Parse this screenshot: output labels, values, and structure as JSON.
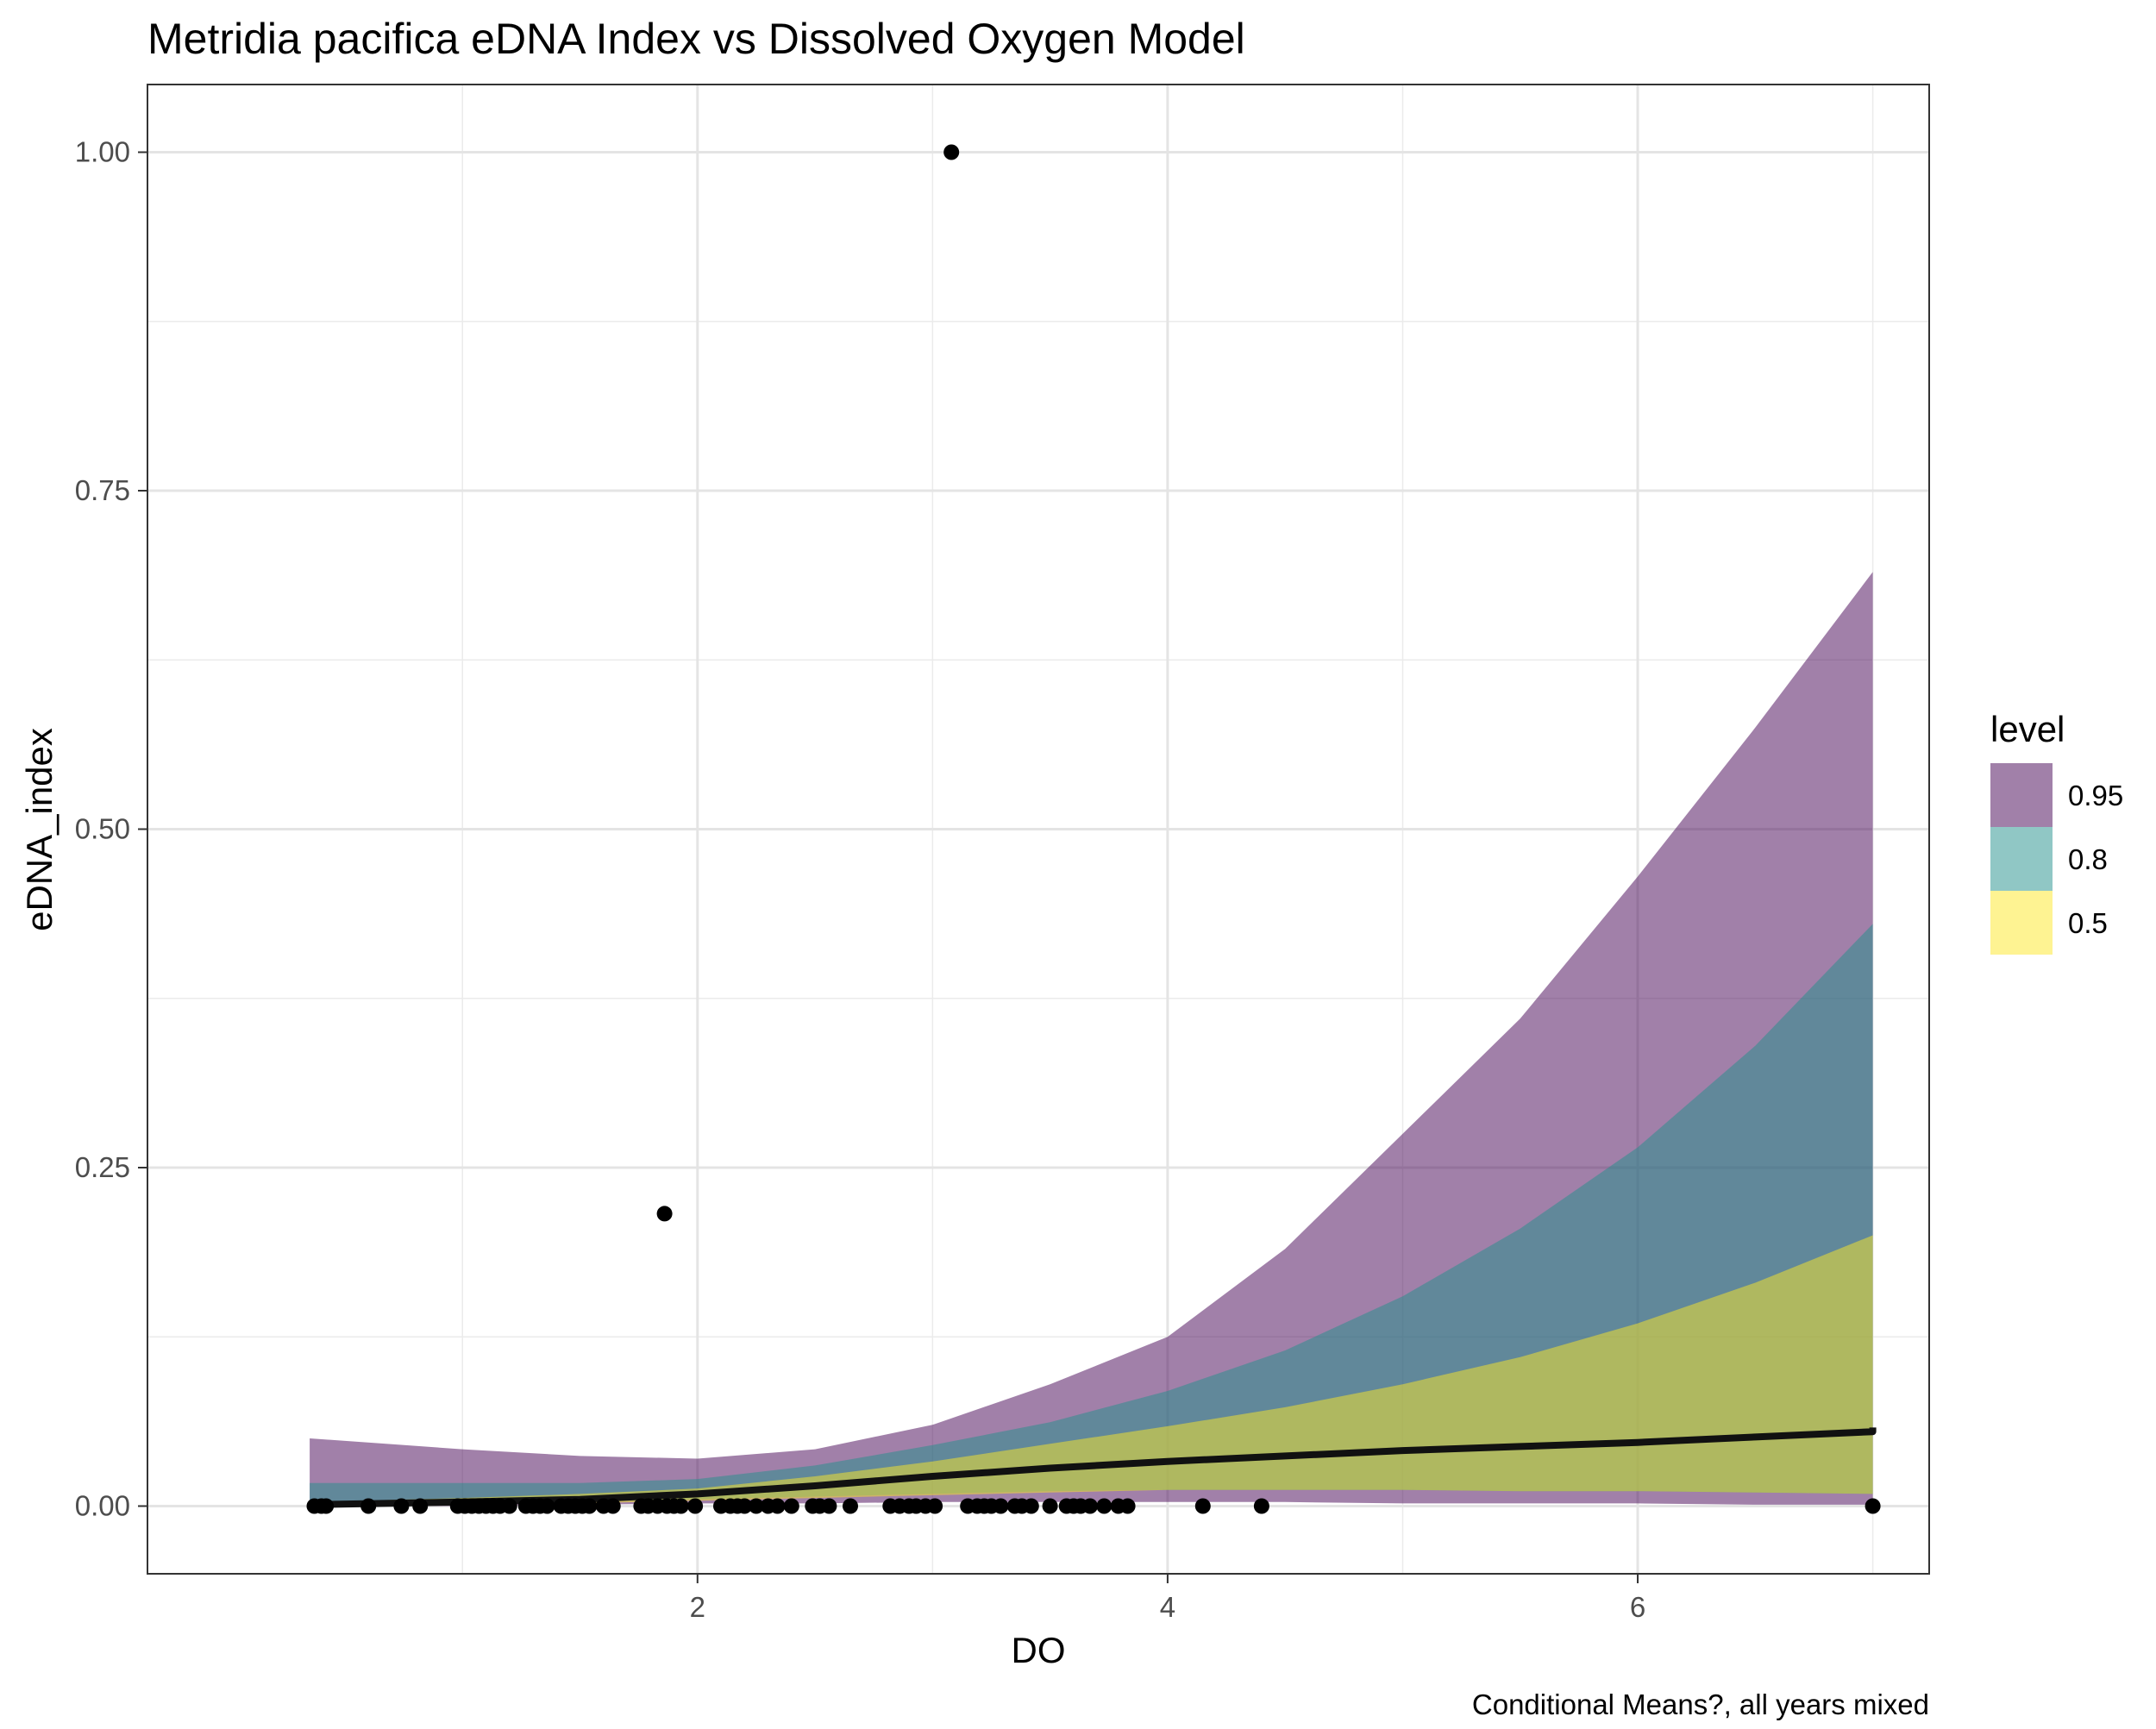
{
  "chart_data": {
    "type": "area",
    "title": "Metridia pacifica eDNA Index vs Dissolved Oxygen Model",
    "caption": "Conditional Means?, all years mixed",
    "xlabel": "DO",
    "ylabel": "eDNA_index",
    "xlim": [
      -0.34,
      7.24
    ],
    "ylim": [
      -0.05,
      1.05
    ],
    "x_ticks": [
      2,
      4,
      6
    ],
    "x_tick_labels": [
      "2",
      "4",
      "6"
    ],
    "y_ticks": [
      0,
      0.25,
      0.5,
      0.75,
      1.0
    ],
    "y_tick_labels": [
      "0.00",
      "0.25",
      "0.50",
      "0.75",
      "1.00"
    ],
    "grid": true,
    "legend": {
      "title": "level",
      "position": "right",
      "items": [
        {
          "label": "0.95",
          "color": "#440154"
        },
        {
          "label": "0.8",
          "color": "#21908C"
        },
        {
          "label": "0.5",
          "color": "#FDE725"
        }
      ]
    },
    "ribbons": [
      {
        "name": "0.95",
        "color": "#440154",
        "opacity": 0.5,
        "x": [
          0.35,
          1.0,
          1.5,
          2.0,
          2.5,
          3.0,
          3.5,
          4.0,
          4.5,
          5.0,
          5.5,
          6.0,
          6.5,
          7.0,
          7.0
        ],
        "lower": [
          0.0,
          0.0,
          0.001,
          0.002,
          0.002,
          0.003,
          0.003,
          0.003,
          0.003,
          0.002,
          0.002,
          0.002,
          0.001,
          0.001,
          0.001
        ],
        "upper": [
          0.05,
          0.042,
          0.037,
          0.035,
          0.042,
          0.06,
          0.09,
          0.125,
          0.19,
          0.275,
          0.36,
          0.465,
          0.575,
          0.69,
          0.742
        ]
      },
      {
        "name": "0.8",
        "color": "#21908C",
        "opacity": 0.5,
        "x": [
          0.35,
          1.0,
          1.5,
          2.0,
          2.5,
          3.0,
          3.5,
          4.0,
          4.5,
          5.0,
          5.5,
          6.0,
          6.5,
          7.0,
          7.0
        ],
        "lower": [
          0.001,
          0.002,
          0.003,
          0.005,
          0.007,
          0.009,
          0.011,
          0.012,
          0.012,
          0.012,
          0.011,
          0.011,
          0.01,
          0.009,
          0.008
        ],
        "upper": [
          0.017,
          0.017,
          0.017,
          0.02,
          0.03,
          0.045,
          0.062,
          0.085,
          0.115,
          0.155,
          0.205,
          0.265,
          0.34,
          0.43,
          0.49
        ]
      },
      {
        "name": "0.5",
        "color": "#FDE725",
        "opacity": 0.5,
        "x": [
          0.35,
          1.0,
          1.5,
          2.0,
          2.5,
          3.0,
          3.5,
          4.0,
          4.5,
          5.0,
          5.5,
          6.0,
          6.5,
          7.0,
          7.0
        ],
        "lower": [
          0.0,
          0.001,
          0.002,
          0.004,
          0.006,
          0.008,
          0.01,
          0.012,
          0.012,
          0.012,
          0.011,
          0.011,
          0.01,
          0.009,
          0.008
        ],
        "upper": [
          0.003,
          0.006,
          0.009,
          0.013,
          0.022,
          0.033,
          0.046,
          0.059,
          0.073,
          0.09,
          0.11,
          0.135,
          0.165,
          0.2,
          0.225
        ]
      }
    ],
    "line": {
      "name": "conditional mean",
      "color": "#111111",
      "x": [
        0.35,
        1.0,
        1.5,
        2.0,
        2.5,
        3.0,
        3.5,
        4.0,
        4.5,
        5.0,
        5.5,
        6.0,
        6.5,
        7.0,
        7.0
      ],
      "y": [
        0.001,
        0.003,
        0.005,
        0.009,
        0.015,
        0.022,
        0.028,
        0.033,
        0.037,
        0.041,
        0.044,
        0.047,
        0.051,
        0.055,
        0.058
      ]
    },
    "points": {
      "color": "#000000",
      "x": [
        0.37,
        0.4,
        0.42,
        0.6,
        0.74,
        0.82,
        0.98,
        1.01,
        1.04,
        1.07,
        1.1,
        1.13,
        1.16,
        1.2,
        1.27,
        1.3,
        1.33,
        1.36,
        1.42,
        1.45,
        1.48,
        1.51,
        1.54,
        1.6,
        1.64,
        1.76,
        1.79,
        1.83,
        1.87,
        1.9,
        1.93,
        1.99,
        2.1,
        2.14,
        2.17,
        2.2,
        2.25,
        2.3,
        2.34,
        2.4,
        2.49,
        2.52,
        2.56,
        2.65,
        2.82,
        2.86,
        2.9,
        2.93,
        2.97,
        3.01,
        3.15,
        3.19,
        3.22,
        3.25,
        3.29,
        3.35,
        3.38,
        3.42,
        3.5,
        3.57,
        3.6,
        3.63,
        3.67,
        3.73,
        3.79,
        3.83,
        4.15,
        4.4,
        7.0,
        1.86,
        3.08
      ],
      "y": [
        0,
        0,
        0,
        0,
        0,
        0,
        0,
        0,
        0,
        0,
        0,
        0,
        0,
        0,
        0,
        0,
        0,
        0,
        0,
        0,
        0,
        0,
        0,
        0,
        0,
        0,
        0,
        0,
        0,
        0,
        0,
        0,
        0,
        0,
        0,
        0,
        0,
        0,
        0,
        0,
        0,
        0,
        0,
        0,
        0,
        0,
        0,
        0,
        0,
        0,
        0,
        0,
        0,
        0,
        0,
        0,
        0,
        0,
        0,
        0,
        0,
        0,
        0,
        0,
        0,
        0,
        0,
        0,
        0,
        0.216,
        1.0
      ]
    }
  }
}
